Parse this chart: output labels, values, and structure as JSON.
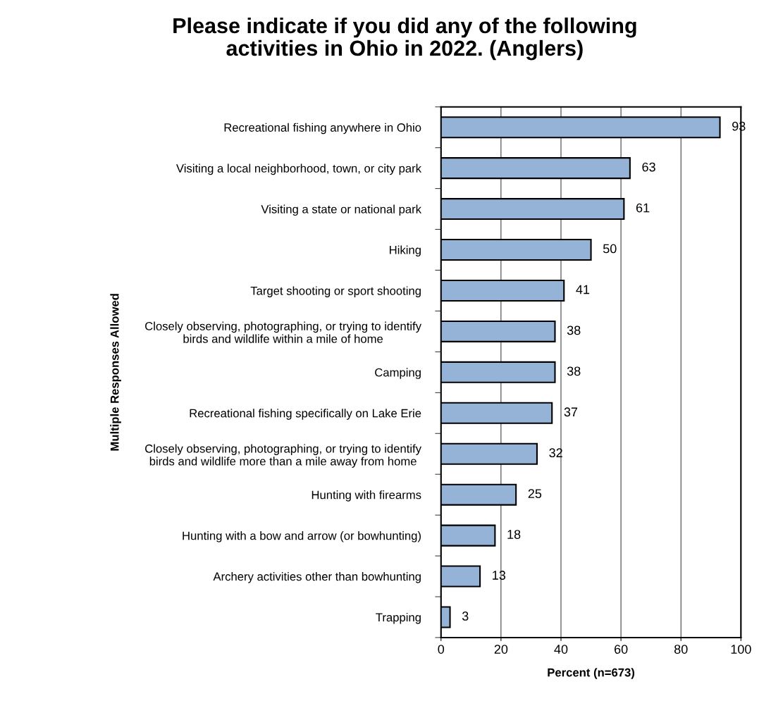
{
  "chart_data": {
    "type": "bar",
    "orientation": "horizontal",
    "title": "Please indicate if you did any of the following\nactivities in Ohio in 2022. (Anglers)",
    "xlabel": "Percent (n=673)",
    "ylabel": "Multiple Responses Allowed",
    "categories": [
      "Recreational fishing anywhere in Ohio",
      "Visiting a local neighborhood, town, or city park",
      "Visiting a state or national park",
      "Hiking",
      "Target shooting or sport shooting",
      "Closely observing, photographing, or trying to identify\nbirds and wildlife within a mile of home",
      "Camping",
      "Recreational fishing specifically on Lake Erie",
      "Closely observing, photographing, or trying to identify\nbirds and wildlife more than a mile away from home",
      "Hunting with firearms",
      "Hunting with a bow and arrow (or bowhunting)",
      "Archery activities other than bowhunting",
      "Trapping"
    ],
    "values": [
      93,
      63,
      61,
      50,
      41,
      38,
      38,
      37,
      32,
      25,
      18,
      13,
      3
    ],
    "color": "#95b3d7",
    "xlim": [
      0,
      100
    ],
    "xticks": [
      0,
      20,
      40,
      60,
      80,
      100
    ],
    "grid": "x",
    "data_labels": true
  }
}
